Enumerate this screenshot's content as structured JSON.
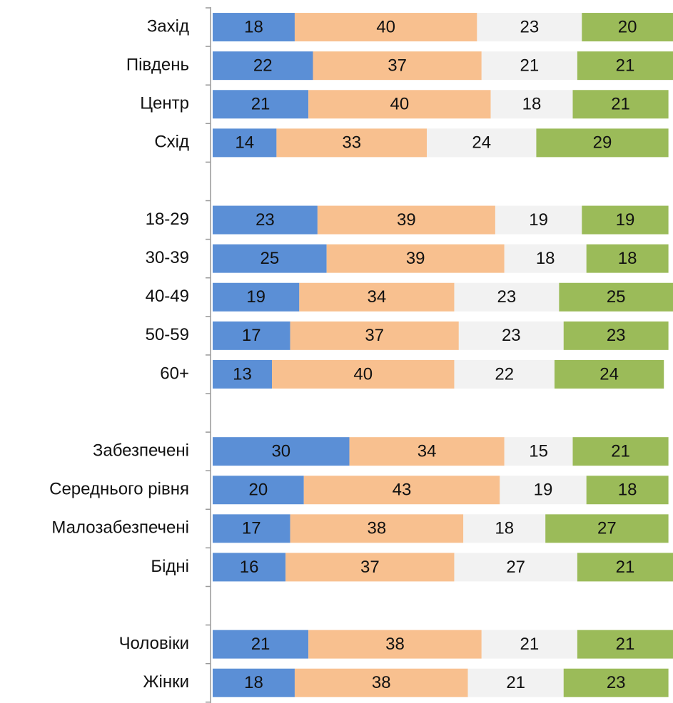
{
  "chart_data": {
    "type": "stacked-bar-horizontal",
    "categories": [
      "Захід",
      "Південь",
      "Центр",
      "Схід",
      null,
      "18-29",
      "30-39",
      "40-49",
      "50-59",
      "60+",
      null,
      "Забезпечені",
      "Середнього рівня",
      "Малозабезпечені",
      "Бідні",
      null,
      "Чоловіки",
      "Жінки"
    ],
    "series": [
      {
        "color": "#5b8fd6",
        "values": [
          18,
          22,
          21,
          14,
          null,
          23,
          25,
          19,
          17,
          13,
          null,
          30,
          20,
          17,
          16,
          null,
          21,
          18
        ]
      },
      {
        "color": "#f8c08f",
        "values": [
          40,
          37,
          40,
          33,
          null,
          39,
          39,
          34,
          37,
          40,
          null,
          34,
          43,
          38,
          37,
          null,
          38,
          38
        ]
      },
      {
        "color": "#f2f2f2",
        "values": [
          23,
          21,
          18,
          24,
          null,
          19,
          18,
          23,
          23,
          22,
          null,
          15,
          19,
          18,
          27,
          null,
          21,
          21
        ]
      },
      {
        "color": "#9bbb59",
        "values": [
          20,
          21,
          21,
          29,
          null,
          19,
          18,
          25,
          23,
          24,
          null,
          21,
          18,
          27,
          21,
          null,
          21,
          23
        ]
      }
    ],
    "xlim": [
      0,
      101
    ]
  }
}
